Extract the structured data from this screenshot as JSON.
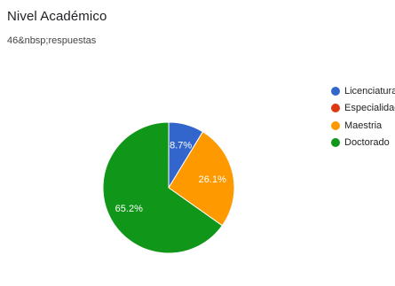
{
  "title": "Nivel Académico",
  "subtitle": "46&nbsp;respuestas",
  "chart_data": {
    "type": "pie",
    "title": "Nivel Académico",
    "categories": [
      "Licenciatura",
      "Especialidad",
      "Maestria",
      "Doctorado"
    ],
    "values": [
      8.7,
      0,
      26.1,
      65.2
    ],
    "labels": [
      "8.7%",
      "",
      "26.1%",
      "65.2%"
    ],
    "colors": [
      "#3366cc",
      "#dc3912",
      "#ff9900",
      "#109618"
    ],
    "legend_position": "right"
  }
}
